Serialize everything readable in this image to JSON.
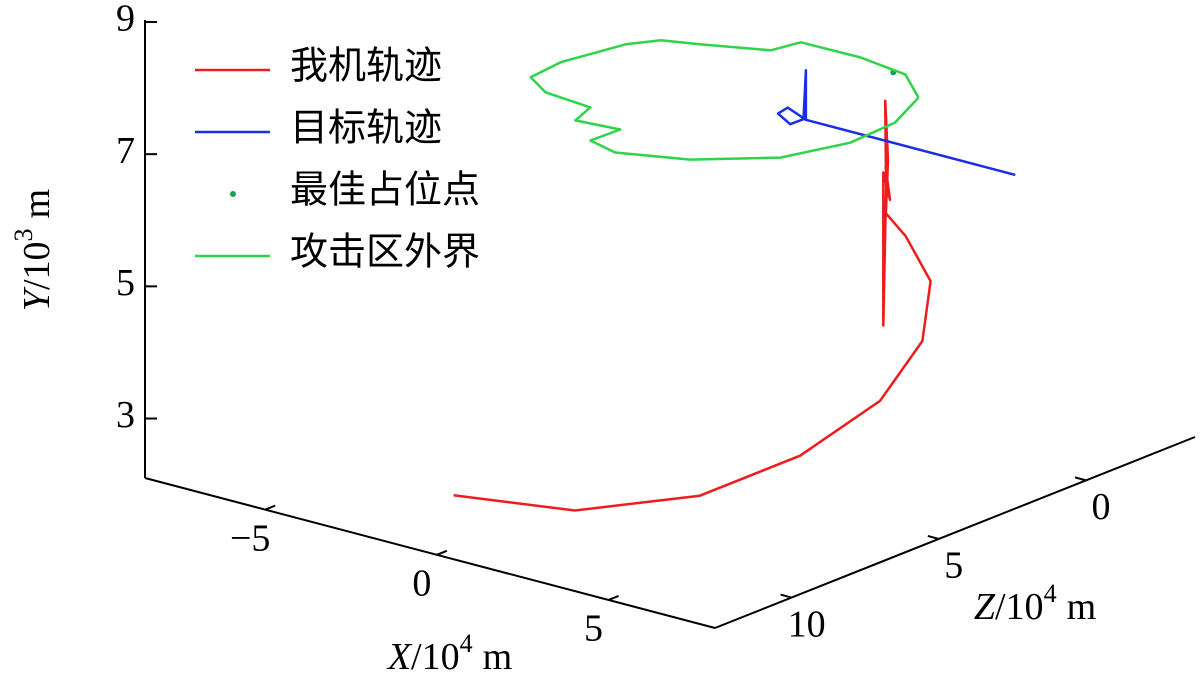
{
  "chart_data": {
    "type": "line3d",
    "xlabel": {
      "var": "X",
      "text": "/10",
      "exp": "4",
      "unit": "m"
    },
    "ylabel": {
      "var": "Y",
      "text": "/10",
      "exp": "3",
      "unit": "m"
    },
    "zlabel": {
      "var": "Z",
      "text": "/10",
      "exp": "4",
      "unit": "m"
    },
    "xlim": [
      -8.5,
      8.1
    ],
    "ylim": [
      2.1,
      9
    ],
    "zlim": [
      -3.7,
      12.6
    ],
    "xticks": [
      {
        "value": -5,
        "label": "−5"
      },
      0,
      5
    ],
    "yticks": [
      3,
      5,
      7,
      9
    ],
    "zticks": [
      0,
      5,
      10
    ],
    "series": [
      {
        "name": "我机轨迹",
        "color": "#ee1c1c",
        "mode": "line",
        "x": [
          0.29,
          3.67,
          6.08,
          6.95,
          7.1,
          6.37,
          5.04,
          3.79,
          3.6,
          3.62,
          3.58,
          3.65,
          3.55,
          3.5,
          3.66,
          3.6,
          3.64
        ],
        "y": [
          3.0,
          3.2,
          3.5,
          3.8,
          4.2,
          4.6,
          5.0,
          5.4,
          5.8,
          6.6,
          7.5,
          6.2,
          4.1,
          6.4,
          6.0,
          6.5,
          6.3
        ],
        "z": [
          12.37,
          12.19,
          10.76,
          8.37,
          5.83,
          3.54,
          1.71,
          1.1,
          1.55,
          1.5,
          1.55,
          1.6,
          1.58,
          1.52,
          1.48,
          1.56,
          1.55
        ]
      },
      {
        "name": "目标轨迹",
        "color": "#1a2ee6",
        "mode": "line",
        "x": [
          7.67,
          1.57,
          1.3,
          1.1,
          1.2,
          1.5,
          1.57,
          1.57
        ],
        "y": [
          7.0,
          7.0,
          7.2,
          7.1,
          6.9,
          7.0,
          7.75,
          7.0
        ],
        "z": [
          1.9,
          1.9,
          2.2,
          2.3,
          2.0,
          1.9,
          1.9,
          1.9
        ]
      },
      {
        "name": "最佳占位点",
        "color": "#17a05a",
        "mode": "markers",
        "x": [
          4.8
        ],
        "y": [
          8.3
        ],
        "z": [
          2.7
        ]
      },
      {
        "name": "攻击区外界",
        "color": "#2fd44a",
        "mode": "line",
        "x": [
          6.35,
          7.04,
          7.14,
          6.57,
          5.08,
          3.45,
          2.49,
          2.53,
          1.34,
          1.03,
          -0.42,
          -1.34,
          -1.48,
          -1.13,
          -0.69,
          0.19,
          1.68,
          1.85,
          3.57,
          5.1,
          6.35
        ],
        "y": [
          8.3,
          8.3,
          8.3,
          8.3,
          8.3,
          8.3,
          8.3,
          8.3,
          8.3,
          8.3,
          8.3,
          8.3,
          8.3,
          8.3,
          8.3,
          8.3,
          8.3,
          8.3,
          8.3,
          8.3,
          8.3
        ],
        "z": [
          3.65,
          5.25,
          6.89,
          8.6,
          9.92,
          10.57,
          10.29,
          9.32,
          9.46,
          8.59,
          8.42,
          7.85,
          6.67,
          4.87,
          4.19,
          3.86,
          3.22,
          2.4,
          2.37,
          2.64,
          3.65
        ]
      }
    ]
  }
}
